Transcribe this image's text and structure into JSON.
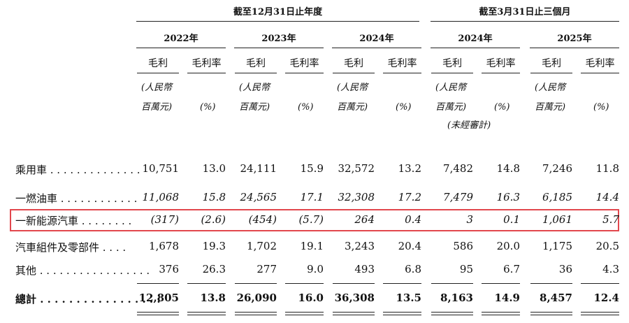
{
  "header": {
    "group_annual": "截至12月31日止年度",
    "group_quarter": "截至3月31日止三個月",
    "years": [
      "2022年",
      "2023年",
      "2024年",
      "2024年",
      "2025年"
    ],
    "col_gross_profit": "毛利",
    "col_gross_margin": "毛利率",
    "unit_rmb_line1": "(人民幣",
    "unit_rmb_line2": "百萬元)",
    "unit_pct": "(%)",
    "unaudited": "(未經審計)"
  },
  "rows": [
    {
      "label": "乘用車 . . . . . . . . . . . . . .",
      "values": [
        "10,751",
        "13.0",
        "24,111",
        "15.9",
        "32,572",
        "13.2",
        "7,482",
        "14.8",
        "7,246",
        "11.8"
      ]
    },
    {
      "label": "一燃油車 . . . . . . . . . . . .",
      "values": [
        "11,068",
        "15.8",
        "24,565",
        "17.1",
        "32,308",
        "17.2",
        "7,479",
        "16.3",
        "6,185",
        "14.4"
      ]
    },
    {
      "label": "一新能源汽車 . . . . . . . .",
      "values": [
        "(317)",
        "(2.6)",
        "(454)",
        "(5.7)",
        "264",
        "0.4",
        "3",
        "0.1",
        "1,061",
        "5.7"
      ]
    },
    {
      "label": "汽車組件及零部件 . . . .",
      "values": [
        "1,678",
        "19.3",
        "1,702",
        "19.1",
        "3,243",
        "20.4",
        "586",
        "20.0",
        "1,175",
        "20.5"
      ]
    },
    {
      "label": "其他 . . . . . . . . . . . . . . . . .",
      "values": [
        "376",
        "26.3",
        "277",
        "9.0",
        "493",
        "6.8",
        "95",
        "6.7",
        "36",
        "4.3"
      ]
    },
    {
      "label": "總計 . . . . . . . . . . . . . . . . .",
      "values": [
        "12,805",
        "13.8",
        "26,090",
        "16.0",
        "36,308",
        "13.5",
        "8,163",
        "14.9",
        "8,457",
        "12.4"
      ]
    }
  ],
  "highlight_color": "#e2474d"
}
